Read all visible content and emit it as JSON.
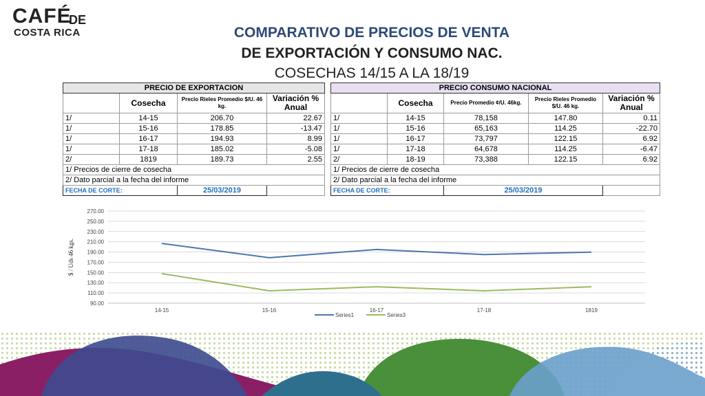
{
  "logo": {
    "cafe": "CAFÉ",
    "de": "DE",
    "costa_rica": "COSTA RICA"
  },
  "title": {
    "line1": "COMPARATIVO DE PRECIOS DE VENTA",
    "line2": "DE EXPORTACIÓN Y CONSUMO NAC.",
    "line3": "COSECHAS 14/15 A LA 18/19"
  },
  "export_table": {
    "title": "PRECIO DE EXPORTACION",
    "col_cosecha": "Cosecha",
    "col_precio": "Precio Rieles Promedio $/U. 46 kg.",
    "col_var": "Variación % Anual",
    "rows": [
      [
        "1/",
        "14-15",
        "206.70",
        "22.67"
      ],
      [
        "1/",
        "15-16",
        "178.85",
        "-13.47"
      ],
      [
        "1/",
        "16-17",
        "194.93",
        "8.99"
      ],
      [
        "1/",
        "17-18",
        "185.02",
        "-5.08"
      ],
      [
        "2/",
        "1819",
        "189.73",
        "2.55"
      ]
    ],
    "note1": "1/ Precios de cierre de cosecha",
    "note2": "2/ Dato parcial a la fecha del informe",
    "corte_label": "FECHA DE CORTE:",
    "corte_value": "25/03/2019"
  },
  "consumo_table": {
    "title": "PRECIO CONSUMO NACIONAL",
    "col_cosecha": "Cosecha",
    "col_precio_col": "Precio Promedio ¢/U. 46kg.",
    "col_precio_usd": "Precio Rieles Promedio $/U. 46 kg.",
    "col_var": "Variación % Anual",
    "rows": [
      [
        "1/",
        "14-15",
        "78,158",
        "147.80",
        "0.11"
      ],
      [
        "1/",
        "15-16",
        "65,163",
        "114.25",
        "-22.70"
      ],
      [
        "1/",
        "16-17",
        "73,797",
        "122.15",
        "6.92"
      ],
      [
        "1/",
        "17-18",
        "64,678",
        "114.25",
        "-6.47"
      ],
      [
        "2/",
        "18-19",
        "73,388",
        "122.15",
        "6.92"
      ]
    ],
    "note1": "1/ Precios de cierre de cosecha",
    "note2": "2/ Dato parcial a la fecha del informe",
    "corte_label": "FECHA DE CORTE:",
    "corte_value": "25/03/2019"
  },
  "chart_data": {
    "type": "line",
    "categories": [
      "14-15",
      "15-16",
      "16-17",
      "17-18",
      "1819"
    ],
    "series": [
      {
        "name": "Series1",
        "values": [
          206.7,
          178.85,
          194.93,
          185.02,
          189.73
        ],
        "color": "#4a76b0"
      },
      {
        "name": "Series3",
        "values": [
          147.8,
          114.25,
          122.15,
          114.25,
          122.15
        ],
        "color": "#9bbb59"
      }
    ],
    "ylabel": "$ / Uds 46 kgs.",
    "ylim": [
      90,
      270
    ],
    "yticks": [
      "270.00",
      "250.00",
      "230.00",
      "210.00",
      "190.00",
      "170.00",
      "150.00",
      "130.00",
      "110.00",
      "90.00"
    ],
    "grid": true,
    "legend": "bottom"
  }
}
